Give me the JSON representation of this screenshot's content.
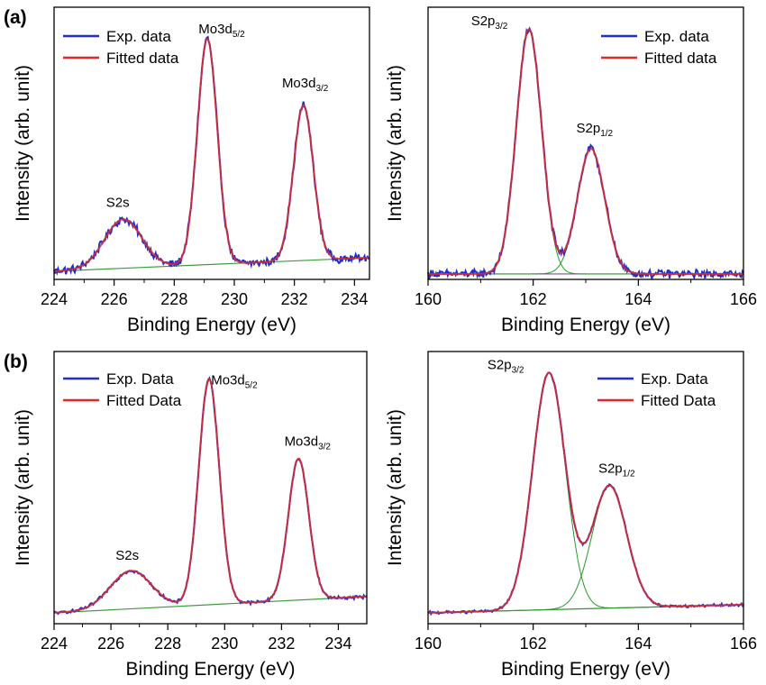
{
  "panel_labels": [
    "(a)",
    "(b)"
  ],
  "chart_data": [
    {
      "type": "line",
      "panel": "(a)",
      "xlabel": "Binding Energy (eV)",
      "ylabel": "Intensity (arb. unit)",
      "xlim": [
        224,
        234.5
      ],
      "ylim": [
        0,
        1
      ],
      "xticks": [
        224,
        226,
        228,
        230,
        232,
        234
      ],
      "legend": {
        "position": "top-left",
        "entries": [
          "Exp. data",
          "Fitted data"
        ]
      },
      "colors": {
        "exp": "#1f2fcf",
        "fit": "#e02a2a",
        "component": "#2a9a2a",
        "background": "#3f9a3f"
      },
      "background_line": [
        [
          224,
          0.03
        ],
        [
          234.5,
          0.08
        ]
      ],
      "peaks": [
        {
          "label": "S2s",
          "center": 226.3,
          "height": 0.18,
          "width": 0.62
        },
        {
          "label": "Mo3d",
          "sub": "5/2",
          "center": 229.1,
          "height": 0.83,
          "width": 0.33
        },
        {
          "label": "Mo3d",
          "sub": "3/2",
          "center": 232.3,
          "height": 0.57,
          "width": 0.33
        }
      ],
      "noise": 0.012,
      "show_components": false
    },
    {
      "type": "line",
      "panel": "(a)",
      "xlabel": "Binding Energy (eV)",
      "ylabel": "Intensity (arb. unit)",
      "xlim": [
        160,
        166
      ],
      "ylim": [
        0,
        1
      ],
      "xticks": [
        160,
        162,
        164,
        166
      ],
      "legend": {
        "position": "top-right",
        "entries": [
          "Exp. data",
          "Fitted data"
        ]
      },
      "colors": {
        "exp": "#1f2fcf",
        "fit": "#e02a2a",
        "component": "#2a9a2a",
        "background": "#7a4fa0"
      },
      "background_line": [
        [
          160,
          0.02
        ],
        [
          166,
          0.02
        ]
      ],
      "peaks": [
        {
          "label": "S2p",
          "sub": "3/2",
          "center": 161.92,
          "height": 0.9,
          "width": 0.24
        },
        {
          "label": "S2p",
          "sub": "1/2",
          "center": 163.1,
          "height": 0.46,
          "width": 0.26
        }
      ],
      "noise": 0.012,
      "show_components": true
    },
    {
      "type": "line",
      "panel": "(b)",
      "xlabel": "Binding Energy (eV)",
      "ylabel": "Intensity (arb. unit)",
      "xlim": [
        224,
        235
      ],
      "ylim": [
        0,
        1
      ],
      "xticks": [
        224,
        226,
        228,
        230,
        232,
        234
      ],
      "legend": {
        "position": "top-left",
        "entries": [
          "Exp. Data",
          "Fitted Data"
        ]
      },
      "colors": {
        "exp": "#1f2fcf",
        "fit": "#e02a2a",
        "component": "#2a9a2a",
        "background": "#3f9a3f"
      },
      "background_line": [
        [
          224,
          0.04
        ],
        [
          235,
          0.1
        ]
      ],
      "peaks": [
        {
          "label": "S2s",
          "center": 226.7,
          "height": 0.14,
          "width": 0.72
        },
        {
          "label": "Mo3d",
          "sub": "5/2",
          "center": 229.45,
          "height": 0.83,
          "width": 0.36
        },
        {
          "label": "Mo3d",
          "sub": "3/2",
          "center": 232.6,
          "height": 0.52,
          "width": 0.36
        }
      ],
      "noise": 0.005,
      "show_components": false
    },
    {
      "type": "line",
      "panel": "(b)",
      "xlabel": "Binding Energy (eV)",
      "ylabel": "Intensity (arb. unit)",
      "xlim": [
        160,
        166
      ],
      "ylim": [
        0,
        1
      ],
      "xticks": [
        160,
        162,
        164,
        166
      ],
      "legend": {
        "position": "top-right",
        "entries": [
          "Exp. Data",
          "Fitted Data"
        ]
      },
      "colors": {
        "exp": "#1f2fcf",
        "fit": "#e02a2a",
        "component": "#2a9a2a",
        "background": "#2a9a2a"
      },
      "background_line": [
        [
          160,
          0.04
        ],
        [
          166,
          0.07
        ]
      ],
      "peaks": [
        {
          "label": "S2p",
          "sub": "3/2",
          "center": 162.3,
          "height": 0.87,
          "width": 0.31
        },
        {
          "label": "S2p",
          "sub": "1/2",
          "center": 163.45,
          "height": 0.45,
          "width": 0.33
        }
      ],
      "noise": 0.004,
      "show_components": true
    }
  ]
}
